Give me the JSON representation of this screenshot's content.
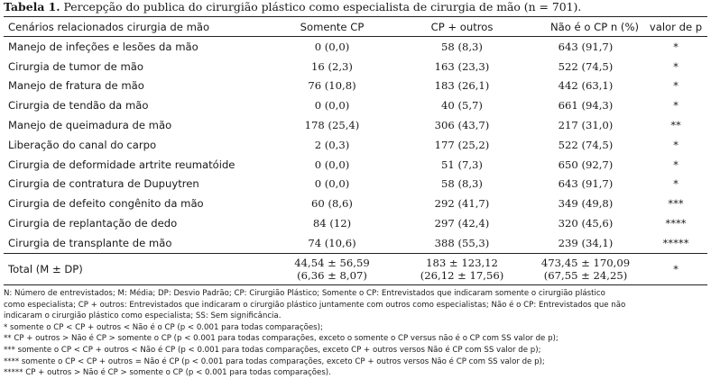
{
  "caption": {
    "label": "Tabela 1.",
    "text": " Percepção do publica do cirurgião plástico como especialista de cirurgia de mão (n = 701)."
  },
  "table": {
    "headers": [
      "Cenários relacionados cirurgia de mão",
      "Somente CP",
      "CP + outros",
      "Não é o CP n (%)",
      "valor de p"
    ],
    "rows": [
      {
        "label": "Manejo de infeções e lesões da mão",
        "somente_cp": "0 (0,0)",
        "cp_outros": "58 (8,3)",
        "nao_cp": "643 (91,7)",
        "p": "*"
      },
      {
        "label": "Cirurgia de tumor de mão",
        "somente_cp": "16 (2,3)",
        "cp_outros": "163 (23,3)",
        "nao_cp": "522 (74,5)",
        "p": "*"
      },
      {
        "label": "Manejo de fratura de mão",
        "somente_cp": "76 (10,8)",
        "cp_outros": "183 (26,1)",
        "nao_cp": "442 (63,1)",
        "p": "*"
      },
      {
        "label": "Cirurgia de tendão da mão",
        "somente_cp": "0 (0,0)",
        "cp_outros": "40 (5,7)",
        "nao_cp": "661 (94,3)",
        "p": "*"
      },
      {
        "label": "Manejo de queimadura de mão",
        "somente_cp": "178 (25,4)",
        "cp_outros": "306 (43,7)",
        "nao_cp": "217 (31,0)",
        "p": "**"
      },
      {
        "label": "Liberação do canal do carpo",
        "somente_cp": "2 (0,3)",
        "cp_outros": "177 (25,2)",
        "nao_cp": "522 (74,5)",
        "p": "*"
      },
      {
        "label": "Cirurgia de deformidade artrite reumatóide",
        "somente_cp": "0 (0,0)",
        "cp_outros": "51 (7,3)",
        "nao_cp": "650 (92,7)",
        "p": "*"
      },
      {
        "label": "Cirurgia de contratura de Dupuytren",
        "somente_cp": "0 (0,0)",
        "cp_outros": "58 (8,3)",
        "nao_cp": "643 (91,7)",
        "p": "*"
      },
      {
        "label": "Cirurgia de defeito congênito da mão",
        "somente_cp": "60 (8,6)",
        "cp_outros": "292 (41,7)",
        "nao_cp": "349 (49,8)",
        "p": "***"
      },
      {
        "label": "Cirurgia de replantação de dedo",
        "somente_cp": "84 (12)",
        "cp_outros": "297 (42,4)",
        "nao_cp": "320 (45,6)",
        "p": "****"
      },
      {
        "label": "Cirurgia de transplante de mão",
        "somente_cp": "74 (10,6)",
        "cp_outros": "388 (55,3)",
        "nao_cp": "239 (34,1)",
        "p": "*****"
      }
    ],
    "total": {
      "label": "Total (M ± DP)",
      "somente_cp": [
        "44,54 ± 56,59",
        "(6,36 ± 8,07)"
      ],
      "cp_outros": [
        "183 ± 123,12",
        "(26,12 ± 17,56)"
      ],
      "nao_cp": [
        "473,45 ± 170,09",
        "(67,55 ± 24,25)"
      ],
      "p": "*"
    }
  },
  "notes": [
    "N: Número de entrevistados; M: Média; DP: Desvio Padrão; CP: Cirurgião Plástico; Somente o CP: Entrevistados que indicaram somente o cirurgião plástico",
    "como especialista; CP + outros: Entrevistados que indicaram o cirurgião plástico juntamente com outros como especialistas; Não é o CP: Entrevistados que não",
    "indicaram o cirurgião plástico como especialista; SS: Sem significância.",
    "* somente o CP < CP + outros < Não é o CP (p < 0.001 para todas comparações);",
    "** CP + outros > Não é CP > somente o CP (p < 0.001 para todas comparações, exceto o somente o CP versus não é o CP com SS valor de p);",
    "*** somente o CP < CP + outros < Não é CP (p < 0.001 para todas comparações, exceto CP + outros versos Não é CP com SS valor de p);",
    "**** somente o CP < CP + outros = Não é CP (p < 0.001 para todas comparações, exceto CP + outros versos Não é CP com SS valor de p);",
    "***** CP + outros > Não é CP > somente o CP (p < 0.001 para todas comparações)."
  ]
}
